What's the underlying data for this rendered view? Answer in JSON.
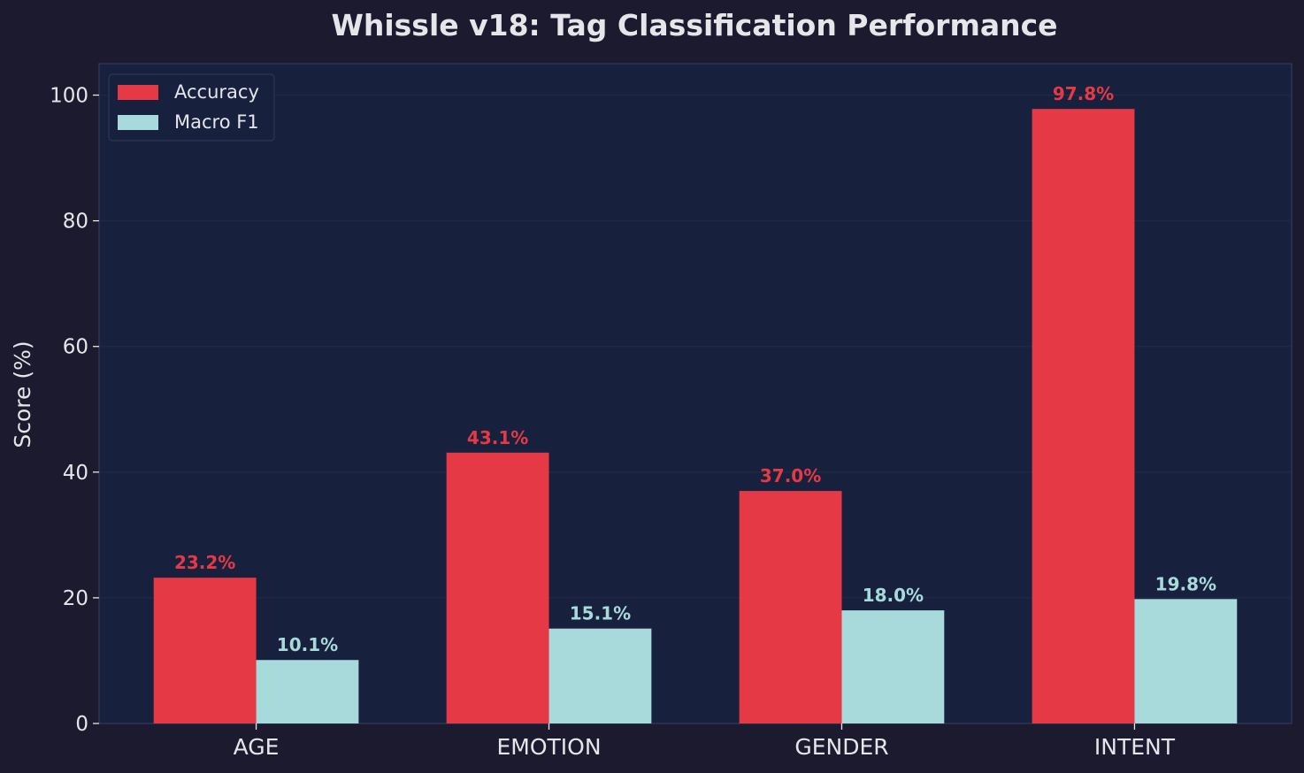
{
  "chart_data": {
    "type": "bar",
    "title": "Whissle v18: Tag Classification Performance",
    "xlabel": "",
    "ylabel": "Score (%)",
    "ylim": [
      0,
      105
    ],
    "yticks": [
      0,
      20,
      40,
      60,
      80,
      100
    ],
    "categories": [
      "AGE",
      "EMOTION",
      "GENDER",
      "INTENT"
    ],
    "series": [
      {
        "name": "Accuracy",
        "color": "#e63946",
        "values": [
          23.2,
          43.1,
          37.0,
          97.8
        ],
        "labels": [
          "23.2%",
          "43.1%",
          "37.0%",
          "97.8%"
        ]
      },
      {
        "name": "Macro F1",
        "color": "#a8dadc",
        "values": [
          10.1,
          15.1,
          18.0,
          19.8
        ],
        "labels": [
          "10.1%",
          "15.1%",
          "18.0%",
          "19.8%"
        ]
      }
    ],
    "legend_position": "top-left",
    "grid": true,
    "colors": {
      "figure_background": "#1b1a2e",
      "plot_background": "#17203d",
      "text": "#e6e6ea",
      "grid": "#222c48",
      "spine": "#2d3656"
    }
  }
}
